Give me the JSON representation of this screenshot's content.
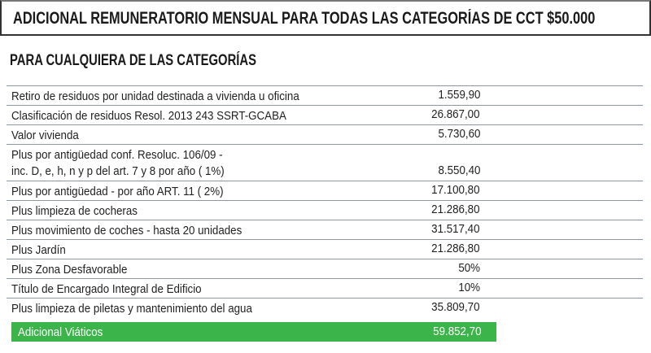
{
  "header": {
    "title": "ADICIONAL REMUNERATORIO MENSUAL PARA TODAS LAS CATEGORÍAS DE CCT $50.000"
  },
  "section": {
    "title": "PARA CUALQUIERA DE LAS CATEGORÍAS"
  },
  "rows": [
    {
      "label": "Retiro de residuos por unidad destinada a vivienda u oficina",
      "value": "1.559,90"
    },
    {
      "label": "Clasificación de residuos Resol. 2013 243 SSRT-GCABA",
      "value": "26.867,00"
    },
    {
      "label": "Valor vivienda",
      "value": "5.730,60"
    },
    {
      "label": "Plus por antigüedad conf. Resoluc. 106/09 -",
      "label2": "inc. D, e, h, n y p del art. 7 y 8 por año ( 1%)",
      "value": "8.550,40"
    },
    {
      "label": "Plus por antigüedad - por año ART. 11 ( 2%)",
      "value": "17.100,80"
    },
    {
      "label": "Plus limpieza de cocheras",
      "value": "21.286,80"
    },
    {
      "label": "Plus movimiento de coches - hasta 20 unidades",
      "value": "31.517,40"
    },
    {
      "label": "Plus Jardín",
      "value": "21.286,80"
    },
    {
      "label": "Plus Zona Desfavorable",
      "value": "50%"
    },
    {
      "label": "Título de Encargado Integral de Edificio",
      "value": "10%"
    },
    {
      "label": "Plus limpieza de piletas y mantenimiento del agua",
      "value": "35.809,70"
    }
  ],
  "total": {
    "label": "Adicional Viáticos",
    "value": "59.852,70"
  },
  "colors": {
    "accent": "#3bb54a",
    "rule": "#8a97a8"
  }
}
